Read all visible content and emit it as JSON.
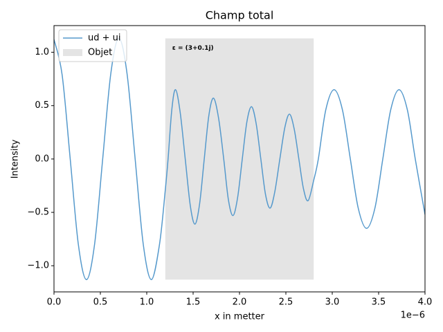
{
  "chart_data": {
    "type": "line",
    "title": "Champ total",
    "xlabel": "x in metter",
    "ylabel": "Intensity",
    "x_offset_label": "1e−6",
    "annotation": "ε = (3+0.1j)",
    "legend": "upper left",
    "xlim": [
      0,
      4
    ],
    "ylim": [
      -1.245,
      1.25
    ],
    "xticks": [
      {
        "value": 0,
        "label": "0.0"
      },
      0.5,
      {
        "value": 1,
        "label": "1.0"
      },
      1.5,
      {
        "value": 2,
        "label": "2.0"
      },
      2.5,
      {
        "value": 3,
        "label": "3.0"
      },
      3.5,
      {
        "value": 4,
        "label": "4.0"
      }
    ],
    "yticks": [
      {
        "value": -1,
        "label": "−1.0"
      },
      {
        "value": -0.5,
        "label": "−0.5"
      },
      {
        "value": 0,
        "label": "0.0"
      },
      0.5,
      {
        "value": 1,
        "label": "1.0"
      }
    ],
    "x": [
      0,
      0.0875,
      0.175,
      0.2625,
      0.35,
      0.4375,
      0.525,
      0.6125,
      0.7,
      0.7875,
      0.875,
      0.9625,
      1.05,
      1.1375,
      1.2,
      1.23,
      1.27,
      1.31,
      1.36,
      1.415,
      1.47,
      1.52,
      1.57,
      1.62,
      1.67,
      1.72,
      1.775,
      1.83,
      1.88,
      1.93,
      1.98,
      2.03,
      2.08,
      2.13,
      2.18,
      2.23,
      2.28,
      2.33,
      2.38,
      2.435,
      2.49,
      2.54,
      2.59,
      2.64,
      2.69,
      2.74,
      2.8,
      2.85,
      2.93,
      3.02,
      3.11,
      3.195,
      3.28,
      3.37,
      3.46,
      3.545,
      3.63,
      3.72,
      3.81,
      3.895,
      4.0
    ],
    "series": [
      {
        "name": "ud + ui",
        "color": "#5599cc",
        "values": [
          1.12,
          0.79,
          0,
          -0.8,
          -1.13,
          -0.8,
          0,
          0.8,
          1.13,
          0.8,
          0,
          -0.8,
          -1.13,
          -0.8,
          -0.29,
          0,
          0.46,
          0.65,
          0.44,
          0,
          -0.44,
          -0.61,
          -0.42,
          0,
          0.41,
          0.57,
          0.38,
          0,
          -0.38,
          -0.53,
          -0.36,
          0,
          0.35,
          0.49,
          0.33,
          0,
          -0.33,
          -0.46,
          -0.31,
          0,
          0.3,
          0.42,
          0.28,
          0,
          -0.28,
          -0.39,
          -0.2,
          0,
          0.46,
          0.65,
          0.46,
          0,
          -0.46,
          -0.65,
          -0.46,
          0,
          0.46,
          0.65,
          0.46,
          0,
          -0.52
        ]
      }
    ],
    "spans": [
      {
        "name": "Objet",
        "color": "#e4e4e4",
        "x": [
          1.2,
          2.8
        ],
        "y": [
          -1.13,
          1.13
        ]
      }
    ]
  }
}
